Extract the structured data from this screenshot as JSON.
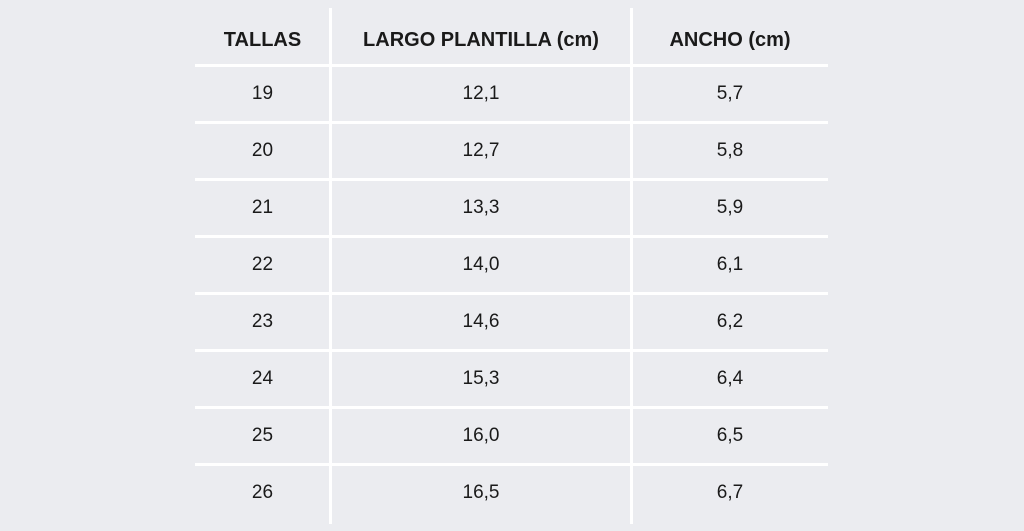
{
  "table": {
    "headers": [
      "TALLAS",
      "LARGO PLANTILLA (cm)",
      "ANCHO (cm)"
    ],
    "rows": [
      [
        "19",
        "12,1",
        "5,7"
      ],
      [
        "20",
        "12,7",
        "5,8"
      ],
      [
        "21",
        "13,3",
        "5,9"
      ],
      [
        "22",
        "14,0",
        "6,1"
      ],
      [
        "23",
        "14,6",
        "6,2"
      ],
      [
        "24",
        "15,3",
        "6,4"
      ],
      [
        "25",
        "16,0",
        "6,5"
      ],
      [
        "26",
        "16,5",
        "6,7"
      ]
    ]
  }
}
